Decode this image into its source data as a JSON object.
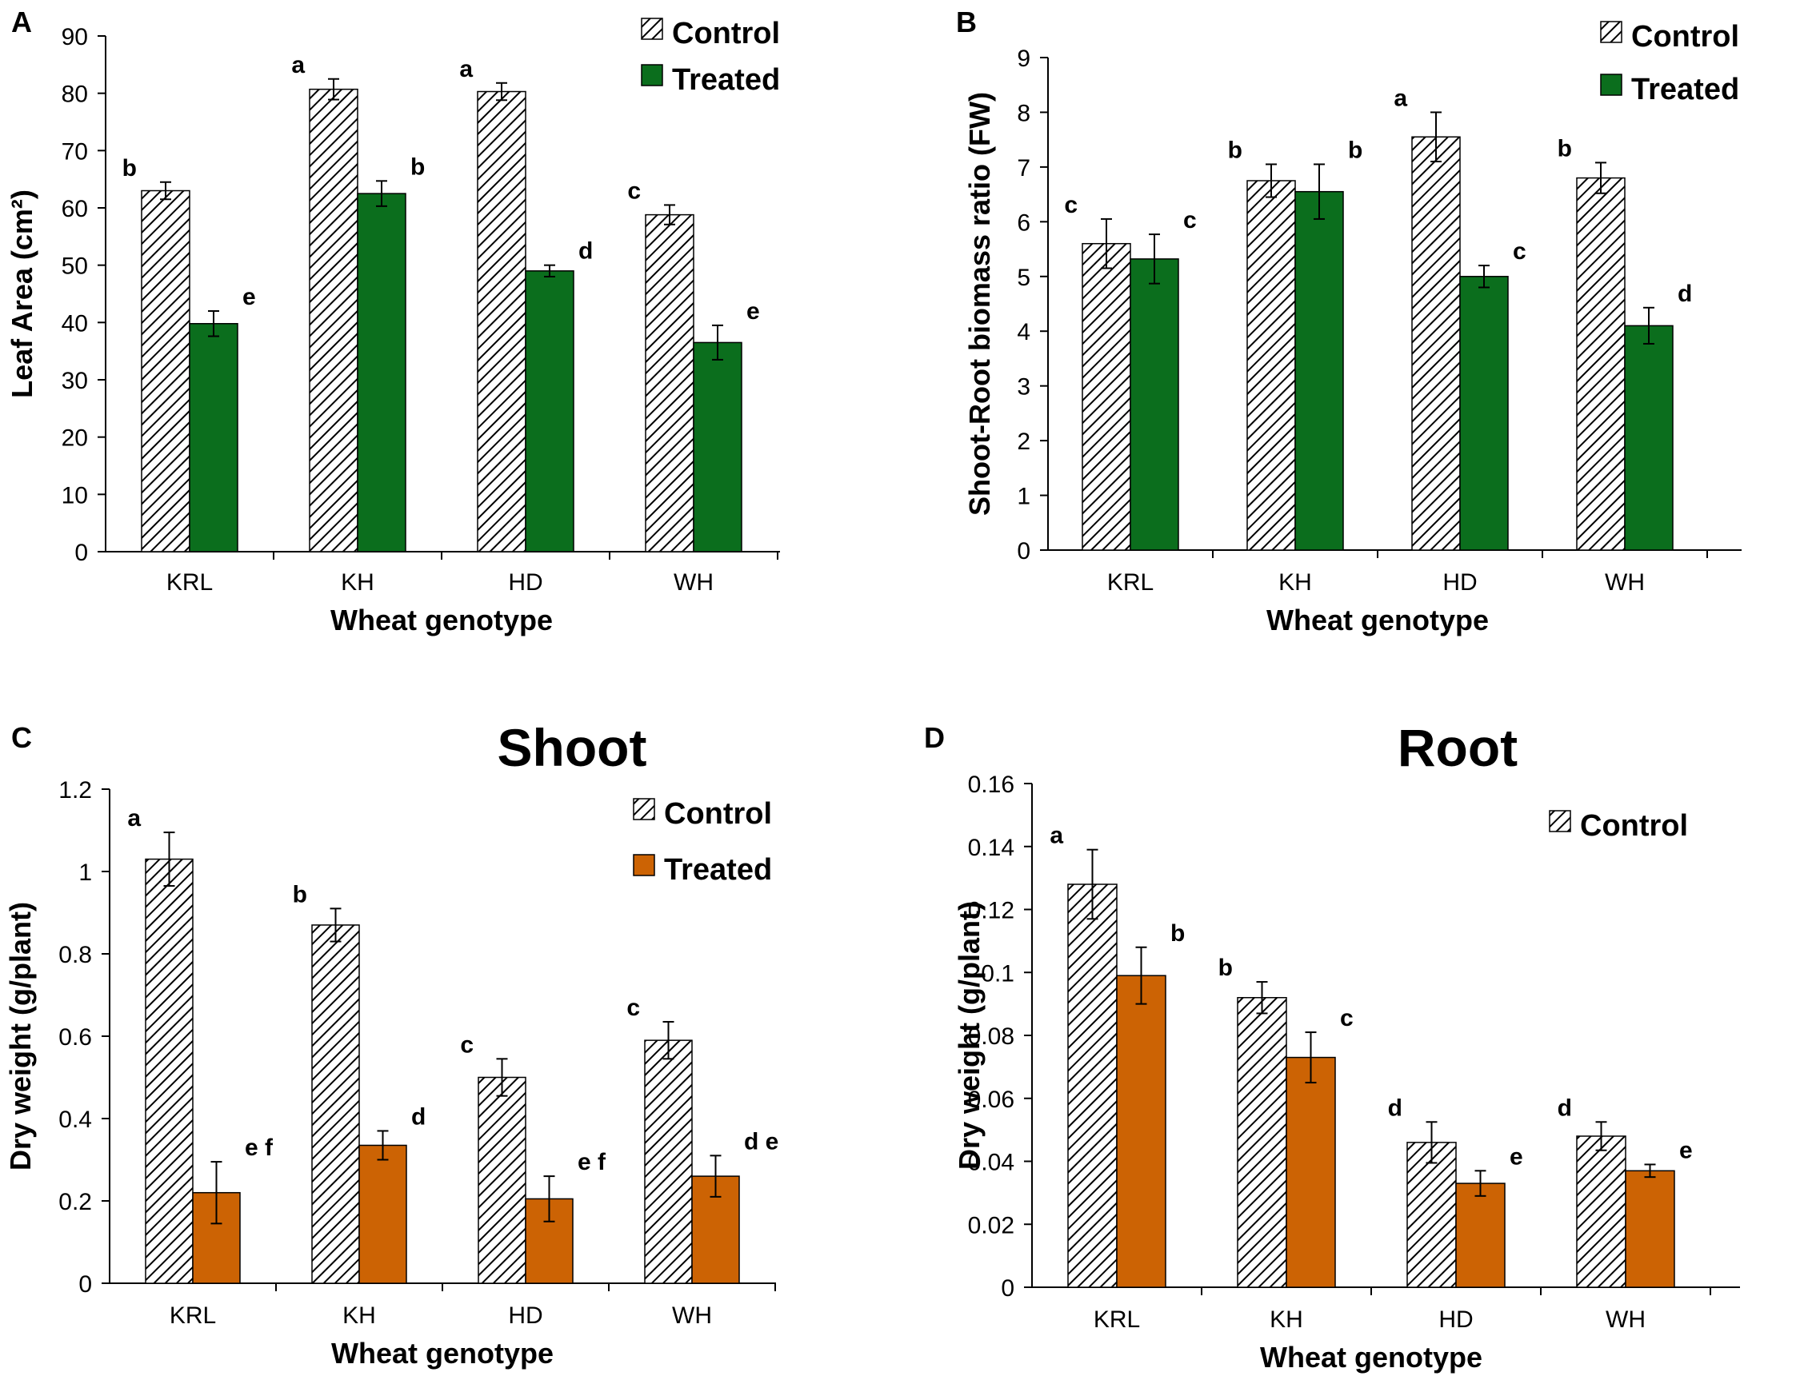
{
  "figure": {
    "panel_labels": [
      "A",
      "B",
      "C",
      "D"
    ]
  },
  "chart_data": [
    {
      "panel": "A",
      "type": "bar",
      "title": "",
      "xlabel": "Wheat genotype",
      "ylabel": "Leaf Area (cm²)",
      "ylim": [
        0,
        90
      ],
      "yticks": [
        0,
        10,
        20,
        30,
        40,
        50,
        60,
        70,
        80,
        90
      ],
      "ytick_labels": [
        "0",
        "10",
        "20",
        "30",
        "40",
        "50",
        "60",
        "70",
        "80",
        "90"
      ],
      "categories": [
        "KRL",
        "KH",
        "HD",
        "WH"
      ],
      "series": [
        {
          "name": "Control",
          "style": "hatch",
          "color": "#000000",
          "values": [
            63,
            80.7,
            80.3,
            58.8
          ],
          "errors": [
            1.5,
            1.8,
            1.5,
            1.7
          ],
          "letters": [
            "b",
            "a",
            "a",
            "c"
          ]
        },
        {
          "name": "Treated",
          "style": "solid",
          "color": "#0b6e1d",
          "values": [
            39.8,
            62.5,
            49,
            36.5
          ],
          "errors": [
            2.2,
            2.2,
            1.0,
            3.0
          ],
          "letters": [
            "e",
            "b",
            "d",
            "e"
          ]
        }
      ],
      "legend": [
        "Control",
        "Treated"
      ]
    },
    {
      "panel": "B",
      "type": "bar",
      "title": "",
      "xlabel": "Wheat genotype",
      "ylabel": "Shoot-Root biomass ratio (FW)",
      "ylim": [
        0,
        9
      ],
      "yticks": [
        0,
        1,
        2,
        3,
        4,
        5,
        6,
        7,
        8,
        9
      ],
      "ytick_labels": [
        "0",
        "1",
        "2",
        "3",
        "4",
        "5",
        "6",
        "7",
        "8",
        "9"
      ],
      "categories": [
        "KRL",
        "KH",
        "HD",
        "WH"
      ],
      "series": [
        {
          "name": "Control",
          "style": "hatch",
          "color": "#000000",
          "values": [
            5.6,
            6.75,
            7.55,
            6.8
          ],
          "errors": [
            0.45,
            0.3,
            0.45,
            0.28
          ],
          "letters": [
            "c",
            "b",
            "a",
            "b"
          ]
        },
        {
          "name": "Treated",
          "style": "solid",
          "color": "#0b6e1d",
          "values": [
            5.32,
            6.55,
            5.0,
            4.1
          ],
          "errors": [
            0.45,
            0.5,
            0.2,
            0.33
          ],
          "letters": [
            "c",
            "b",
            "c",
            "d"
          ]
        }
      ],
      "legend": [
        "Control",
        "Treated"
      ]
    },
    {
      "panel": "C",
      "type": "bar",
      "title": "Shoot",
      "xlabel": "Wheat genotype",
      "ylabel": "Dry weight (g/plant)",
      "ylim": [
        0,
        1.2
      ],
      "yticks": [
        0,
        0.2,
        0.4,
        0.6,
        0.8,
        1.0,
        1.2
      ],
      "ytick_labels": [
        "0",
        "0.2",
        "0.4",
        "0.6",
        "0.8",
        "1",
        "1.2"
      ],
      "categories": [
        "KRL",
        "KH",
        "HD",
        "WH"
      ],
      "series": [
        {
          "name": "Control",
          "style": "hatch",
          "color": "#000000",
          "values": [
            1.03,
            0.87,
            0.5,
            0.59
          ],
          "errors": [
            0.065,
            0.04,
            0.045,
            0.045
          ],
          "letters": [
            "a",
            "b",
            "c",
            "c"
          ]
        },
        {
          "name": "Treated",
          "style": "solid",
          "color": "#cc6304",
          "values": [
            0.22,
            0.335,
            0.205,
            0.26
          ],
          "errors": [
            0.075,
            0.035,
            0.055,
            0.05
          ],
          "letters": [
            "e f",
            "d",
            "e f",
            "d e"
          ]
        }
      ],
      "legend": [
        "Control",
        "Treated"
      ]
    },
    {
      "panel": "D",
      "type": "bar",
      "title": "Root",
      "xlabel": "Wheat genotype",
      "ylabel": "Dry weight (g/plant)",
      "ylim": [
        0,
        0.16
      ],
      "yticks": [
        0,
        0.02,
        0.04,
        0.06,
        0.08,
        0.1,
        0.12,
        0.14,
        0.16
      ],
      "ytick_labels": [
        "0",
        "0.02",
        "0.04",
        "0.06",
        "0.08",
        "0.1",
        "0.12",
        "0.14",
        "0.16"
      ],
      "categories": [
        "KRL",
        "KH",
        "HD",
        "WH"
      ],
      "series": [
        {
          "name": "Control",
          "style": "hatch",
          "color": "#000000",
          "values": [
            0.128,
            0.092,
            0.046,
            0.048
          ],
          "errors": [
            0.011,
            0.005,
            0.0065,
            0.0045
          ],
          "letters": [
            "a",
            "b",
            "d",
            "d"
          ]
        },
        {
          "name": "Treated",
          "style": "solid",
          "color": "#cc6304",
          "values": [
            0.099,
            0.073,
            0.033,
            0.037
          ],
          "errors": [
            0.009,
            0.008,
            0.004,
            0.002
          ],
          "letters": [
            "b",
            "c",
            "e",
            "e"
          ]
        }
      ],
      "legend": [
        "Control"
      ]
    }
  ]
}
